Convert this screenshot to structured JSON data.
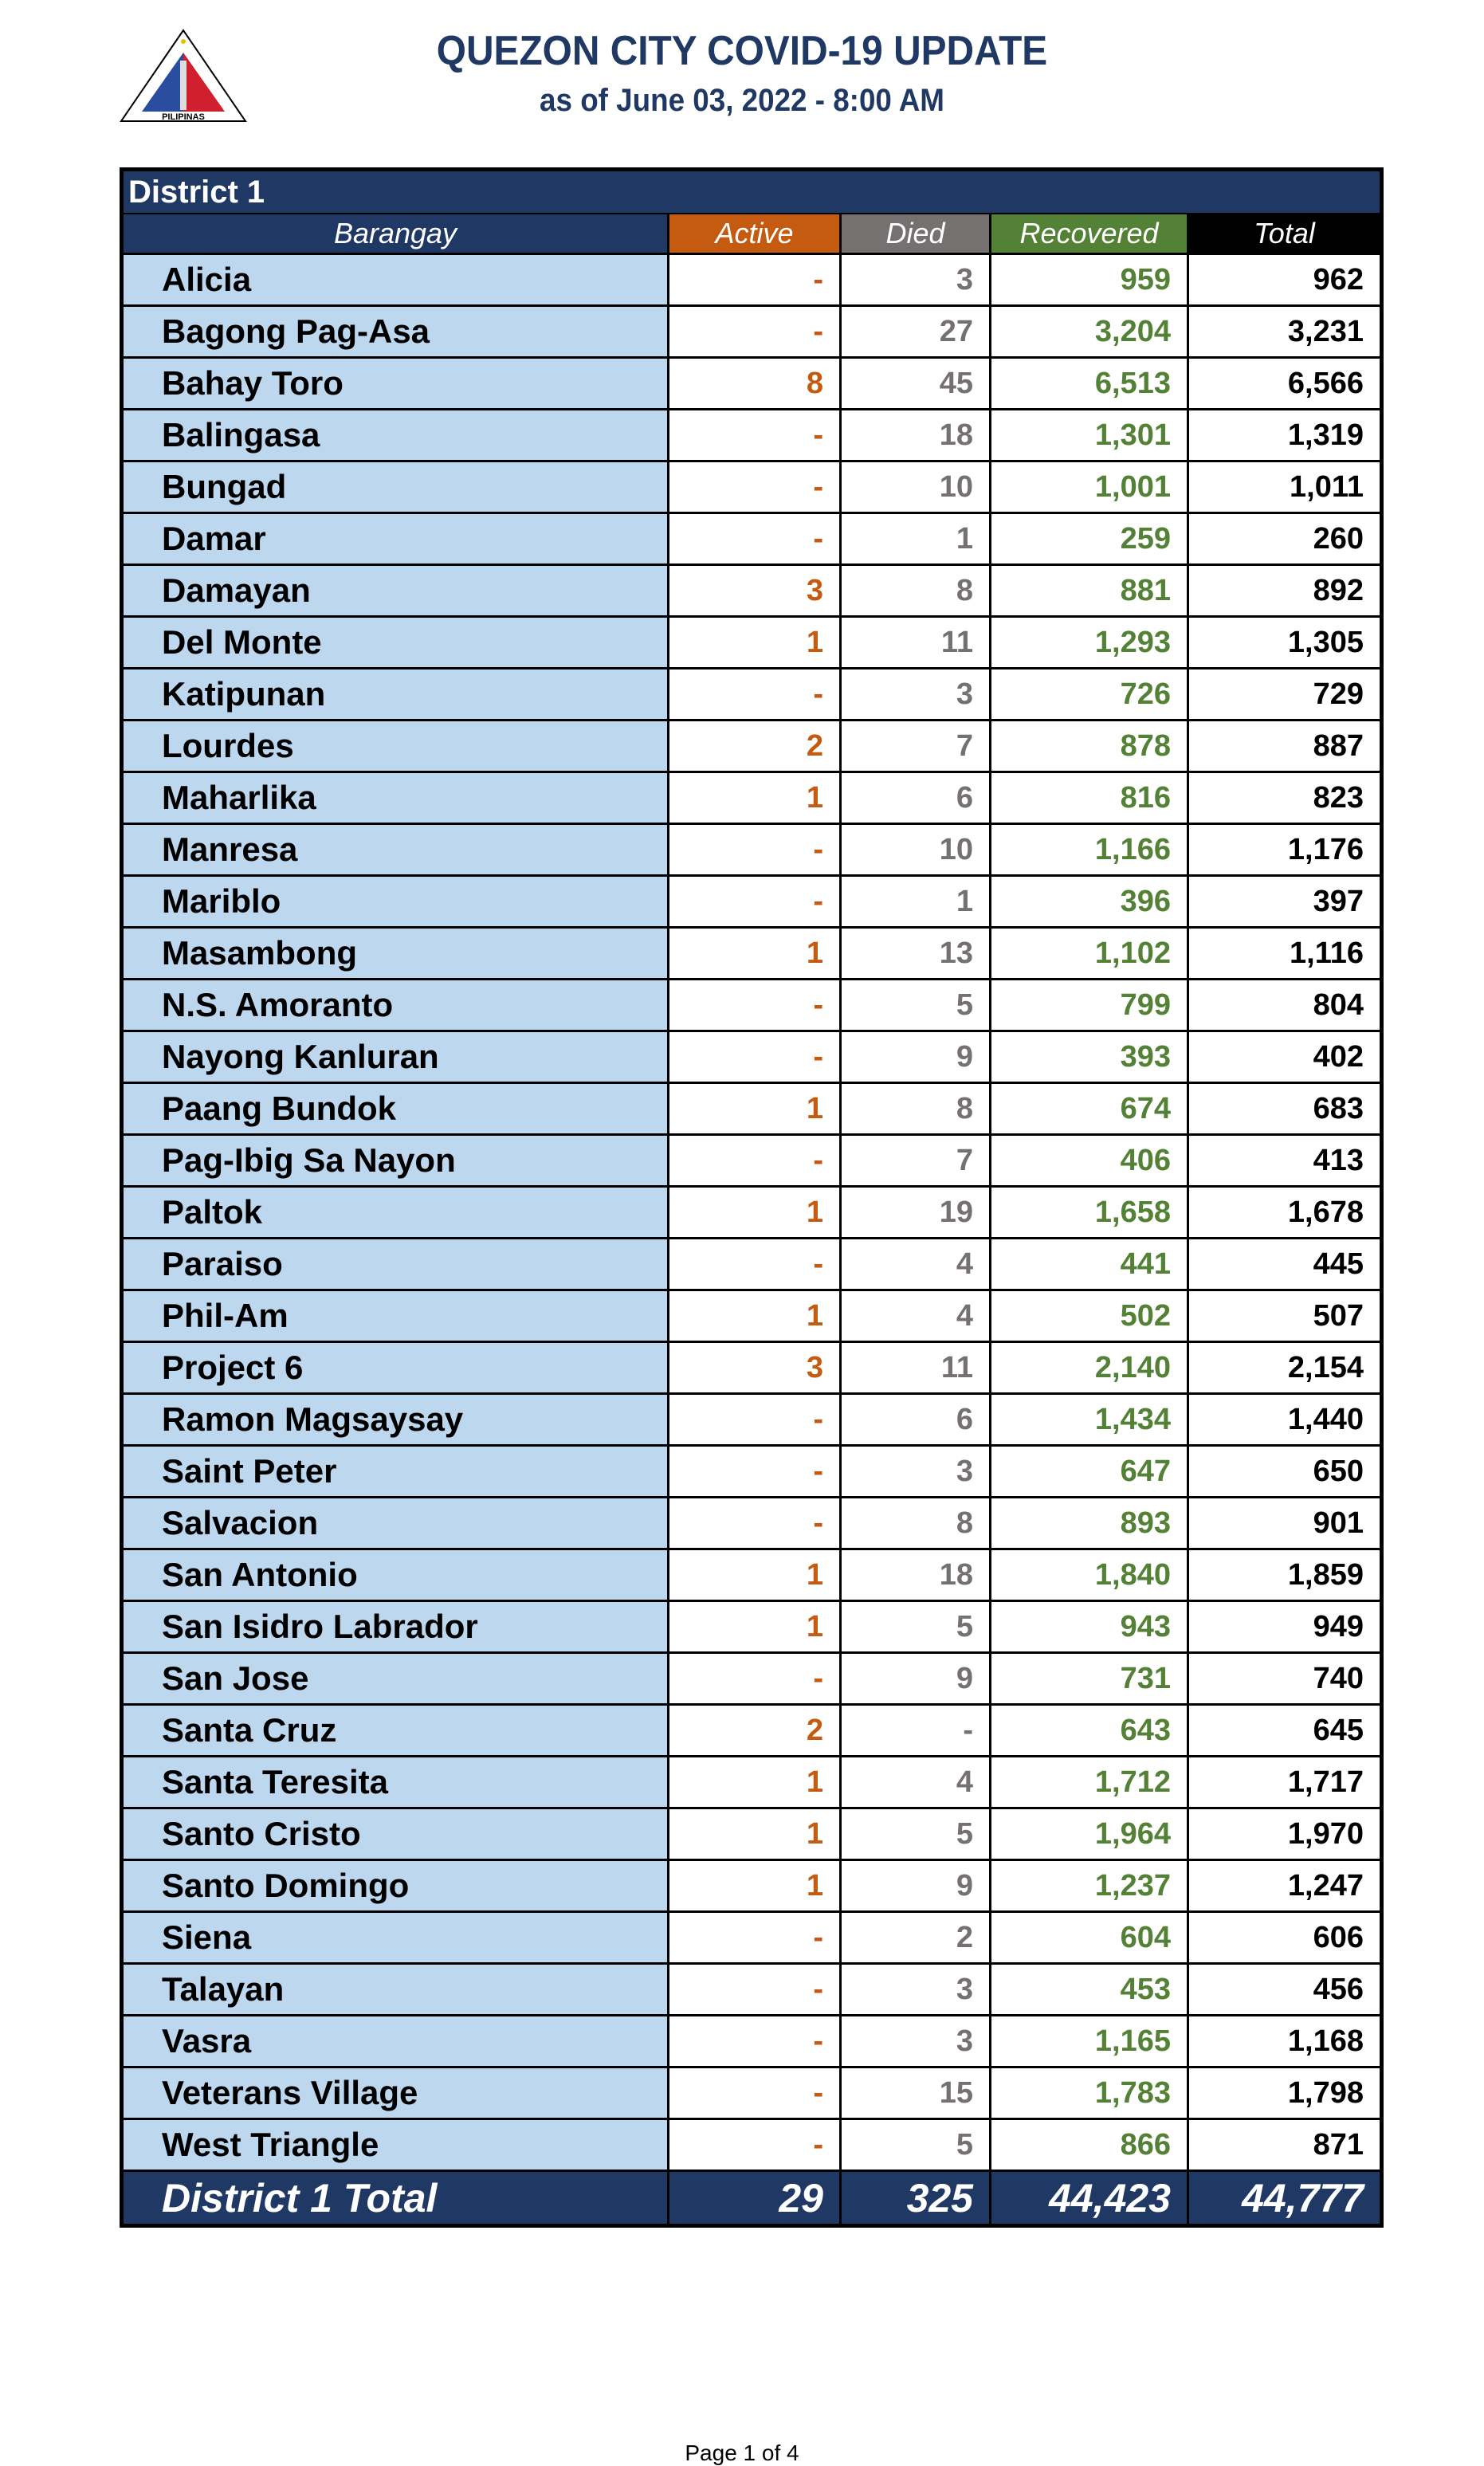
{
  "header": {
    "title": "QUEZON CITY COVID-19 UPDATE",
    "subtitle": "as of June 03, 2022 - 8:00 AM",
    "logo_text": "LUNGSOD QUEZON PILIPINAS"
  },
  "colors": {
    "navy": "#203864",
    "active": "#c55a11",
    "died": "#767171",
    "recovered": "#538135",
    "barangay_bg": "#bdd7ee"
  },
  "table": {
    "district": "District 1",
    "columns": [
      "Barangay",
      "Active",
      "Died",
      "Recovered",
      "Total"
    ],
    "rows": [
      [
        "Alicia",
        "-",
        "3",
        "959",
        "962"
      ],
      [
        "Bagong Pag-Asa",
        "-",
        "27",
        "3,204",
        "3,231"
      ],
      [
        "Bahay Toro",
        "8",
        "45",
        "6,513",
        "6,566"
      ],
      [
        "Balingasa",
        "-",
        "18",
        "1,301",
        "1,319"
      ],
      [
        "Bungad",
        "-",
        "10",
        "1,001",
        "1,011"
      ],
      [
        "Damar",
        "-",
        "1",
        "259",
        "260"
      ],
      [
        "Damayan",
        "3",
        "8",
        "881",
        "892"
      ],
      [
        "Del Monte",
        "1",
        "11",
        "1,293",
        "1,305"
      ],
      [
        "Katipunan",
        "-",
        "3",
        "726",
        "729"
      ],
      [
        "Lourdes",
        "2",
        "7",
        "878",
        "887"
      ],
      [
        "Maharlika",
        "1",
        "6",
        "816",
        "823"
      ],
      [
        "Manresa",
        "-",
        "10",
        "1,166",
        "1,176"
      ],
      [
        "Mariblo",
        "-",
        "1",
        "396",
        "397"
      ],
      [
        "Masambong",
        "1",
        "13",
        "1,102",
        "1,116"
      ],
      [
        "N.S. Amoranto",
        "-",
        "5",
        "799",
        "804"
      ],
      [
        "Nayong Kanluran",
        "-",
        "9",
        "393",
        "402"
      ],
      [
        "Paang Bundok",
        "1",
        "8",
        "674",
        "683"
      ],
      [
        "Pag-Ibig Sa Nayon",
        "-",
        "7",
        "406",
        "413"
      ],
      [
        "Paltok",
        "1",
        "19",
        "1,658",
        "1,678"
      ],
      [
        "Paraiso",
        "-",
        "4",
        "441",
        "445"
      ],
      [
        "Phil-Am",
        "1",
        "4",
        "502",
        "507"
      ],
      [
        "Project 6",
        "3",
        "11",
        "2,140",
        "2,154"
      ],
      [
        "Ramon Magsaysay",
        "-",
        "6",
        "1,434",
        "1,440"
      ],
      [
        "Saint Peter",
        "-",
        "3",
        "647",
        "650"
      ],
      [
        "Salvacion",
        "-",
        "8",
        "893",
        "901"
      ],
      [
        "San Antonio",
        "1",
        "18",
        "1,840",
        "1,859"
      ],
      [
        "San Isidro Labrador",
        "1",
        "5",
        "943",
        "949"
      ],
      [
        "San Jose",
        "-",
        "9",
        "731",
        "740"
      ],
      [
        "Santa Cruz",
        "2",
        "-",
        "643",
        "645"
      ],
      [
        "Santa Teresita",
        "1",
        "4",
        "1,712",
        "1,717"
      ],
      [
        "Santo Cristo",
        "1",
        "5",
        "1,964",
        "1,970"
      ],
      [
        "Santo Domingo",
        "1",
        "9",
        "1,237",
        "1,247"
      ],
      [
        "Siena",
        "-",
        "2",
        "604",
        "606"
      ],
      [
        "Talayan",
        "-",
        "3",
        "453",
        "456"
      ],
      [
        "Vasra",
        "-",
        "3",
        "1,165",
        "1,168"
      ],
      [
        "Veterans Village",
        "-",
        "15",
        "1,783",
        "1,798"
      ],
      [
        "West Triangle",
        "-",
        "5",
        "866",
        "871"
      ]
    ],
    "total": [
      "District 1 Total",
      "29",
      "325",
      "44,423",
      "44,777"
    ]
  },
  "footer": {
    "page": "Page 1 of 4"
  }
}
